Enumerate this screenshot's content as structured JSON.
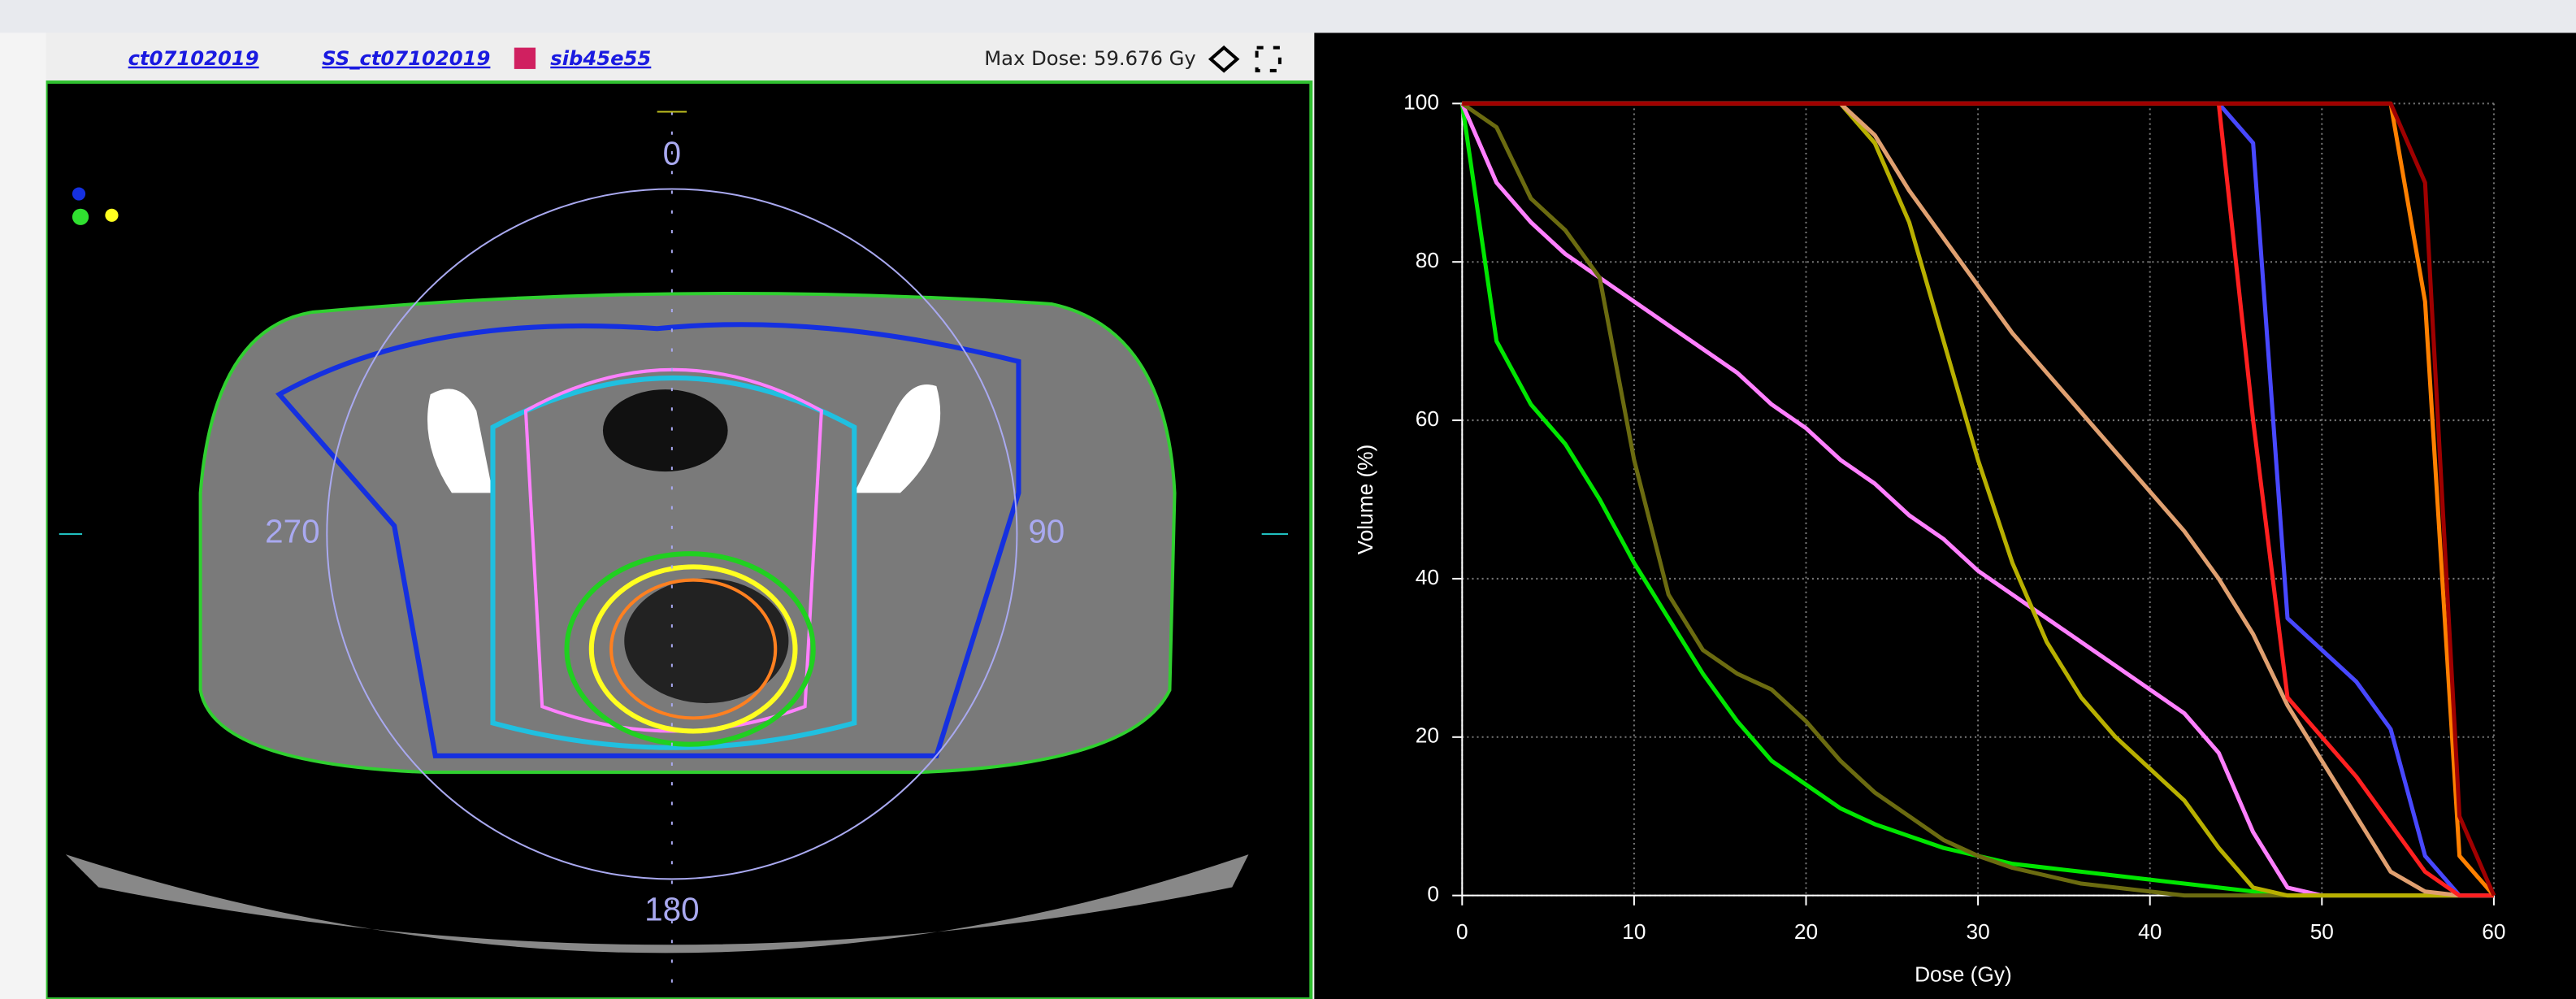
{
  "toolbar": {
    "links": [
      "ct07102019",
      "SS_ct07102019",
      "sib45e55"
    ],
    "max_dose": "Max Dose: 59.676 Gy"
  },
  "viewer": {
    "orientation_labels": {
      "top": "0",
      "right": "90",
      "bottom": "180",
      "left": "270"
    }
  },
  "chart_data": {
    "type": "line",
    "xlabel": "Dose (Gy)",
    "ylabel": "Volume (%)",
    "x": [
      0,
      2,
      4,
      6,
      8,
      10,
      12,
      14,
      16,
      18,
      20,
      22,
      24,
      26,
      28,
      30,
      32,
      34,
      36,
      38,
      40,
      42,
      44,
      46,
      48,
      50,
      52,
      54,
      56,
      58,
      60
    ],
    "xlim": [
      0,
      60
    ],
    "ylim": [
      0,
      100
    ],
    "xticks": [
      0,
      10,
      20,
      30,
      40,
      50,
      60
    ],
    "yticks": [
      0,
      20,
      40,
      60,
      80,
      100
    ],
    "grid": true,
    "series": [
      {
        "color": "#00e600",
        "values": [
          100,
          70,
          62,
          57,
          50,
          42,
          35,
          28,
          22,
          17,
          14,
          11,
          9,
          7.5,
          6,
          5,
          4,
          3.5,
          3,
          2.5,
          2,
          1.5,
          1,
          0.5,
          0,
          0,
          0,
          0,
          0,
          0,
          0
        ]
      },
      {
        "color": "#ff80ff",
        "values": [
          100,
          90,
          85,
          81,
          78,
          75,
          72,
          69,
          66,
          62,
          59,
          55,
          52,
          48,
          45,
          41,
          38,
          35,
          32,
          29,
          26,
          23,
          18,
          8,
          1,
          0,
          0,
          0,
          0,
          0,
          0
        ]
      },
      {
        "color": "#6b6b10",
        "values": [
          100,
          97,
          88,
          84,
          78,
          55,
          38,
          31,
          28,
          26,
          22,
          17,
          13,
          10,
          7,
          5,
          3.5,
          2.5,
          1.5,
          1,
          0.5,
          0,
          0,
          0,
          0,
          0,
          0,
          0,
          0,
          0,
          0
        ]
      },
      {
        "color": "#b8b000",
        "values": [
          100,
          100,
          100,
          100,
          100,
          100,
          100,
          100,
          100,
          100,
          100,
          100,
          95,
          85,
          70,
          55,
          42,
          32,
          25,
          20,
          16,
          12,
          6,
          1,
          0,
          0,
          0,
          0,
          0,
          0,
          0
        ]
      },
      {
        "color": "#e0a070",
        "values": [
          100,
          100,
          100,
          100,
          100,
          100,
          100,
          100,
          100,
          100,
          100,
          100,
          96,
          89,
          83,
          77,
          71,
          66,
          61,
          56,
          51,
          46,
          40,
          33,
          24,
          17,
          10,
          3,
          0.5,
          0,
          0
        ]
      },
      {
        "color": "#4848ff",
        "values": [
          100,
          100,
          100,
          100,
          100,
          100,
          100,
          100,
          100,
          100,
          100,
          100,
          100,
          100,
          100,
          100,
          100,
          100,
          100,
          100,
          100,
          100,
          100,
          95,
          35,
          31,
          27,
          21,
          5,
          0,
          0
        ]
      },
      {
        "color": "#ff2020",
        "values": [
          100,
          100,
          100,
          100,
          100,
          100,
          100,
          100,
          100,
          100,
          100,
          100,
          100,
          100,
          100,
          100,
          100,
          100,
          100,
          100,
          100,
          100,
          100,
          60,
          25,
          20,
          15,
          9,
          3,
          0,
          0
        ]
      },
      {
        "color": "#ff8000",
        "values": [
          100,
          100,
          100,
          100,
          100,
          100,
          100,
          100,
          100,
          100,
          100,
          100,
          100,
          100,
          100,
          100,
          100,
          100,
          100,
          100,
          100,
          100,
          100,
          100,
          100,
          100,
          100,
          100,
          75,
          5,
          0
        ]
      },
      {
        "color": "#a00000",
        "values": [
          100,
          100,
          100,
          100,
          100,
          100,
          100,
          100,
          100,
          100,
          100,
          100,
          100,
          100,
          100,
          100,
          100,
          100,
          100,
          100,
          100,
          100,
          100,
          100,
          100,
          100,
          100,
          100,
          90,
          10,
          0
        ]
      }
    ]
  }
}
